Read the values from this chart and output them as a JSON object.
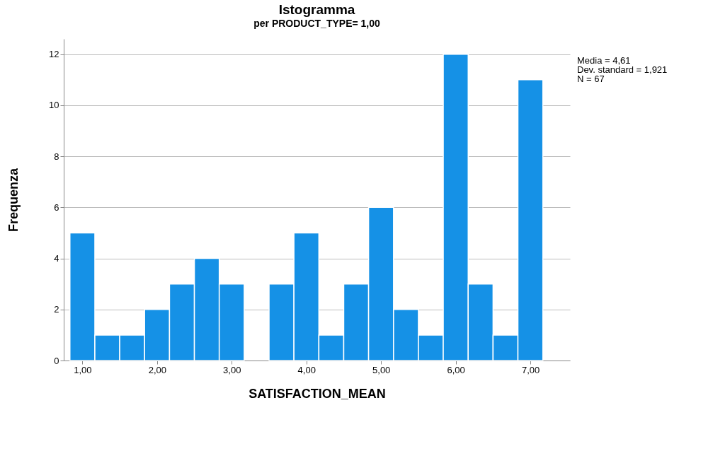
{
  "chart_data": {
    "type": "histogram",
    "title": "Istogramma",
    "subtitle": "per PRODUCT_TYPE= 1,00",
    "xlabel": "SATISFACTION_MEAN",
    "ylabel": "Frequenza",
    "bins": [
      0.833,
      1.167,
      1.5,
      1.833,
      2.167,
      2.5,
      2.833,
      3.167,
      3.5,
      3.833,
      4.167,
      4.5,
      4.833,
      5.167,
      5.5,
      5.833,
      6.167,
      6.5,
      6.833,
      7.167
    ],
    "values": [
      5,
      1,
      1,
      2,
      3,
      4,
      3,
      0,
      3,
      5,
      1,
      3,
      6,
      2,
      1,
      12,
      3,
      1,
      11
    ],
    "color": "#1591e6",
    "xlim": [
      0.75,
      7.53
    ],
    "xticks": [
      {
        "value": 1,
        "label": "1,00"
      },
      {
        "value": 2,
        "label": "2,00"
      },
      {
        "value": 3,
        "label": "3,00"
      },
      {
        "value": 4,
        "label": "4,00"
      },
      {
        "value": 5,
        "label": "5,00"
      },
      {
        "value": 6,
        "label": "6,00"
      },
      {
        "value": 7,
        "label": "7,00"
      }
    ],
    "ylim": [
      0,
      12.6
    ],
    "yticks": [
      0,
      2,
      4,
      6,
      8,
      10,
      12
    ],
    "grid": "y",
    "annotations": [
      "Media = 4,61",
      "Dev. standard = 1,921",
      "N = 67"
    ]
  }
}
